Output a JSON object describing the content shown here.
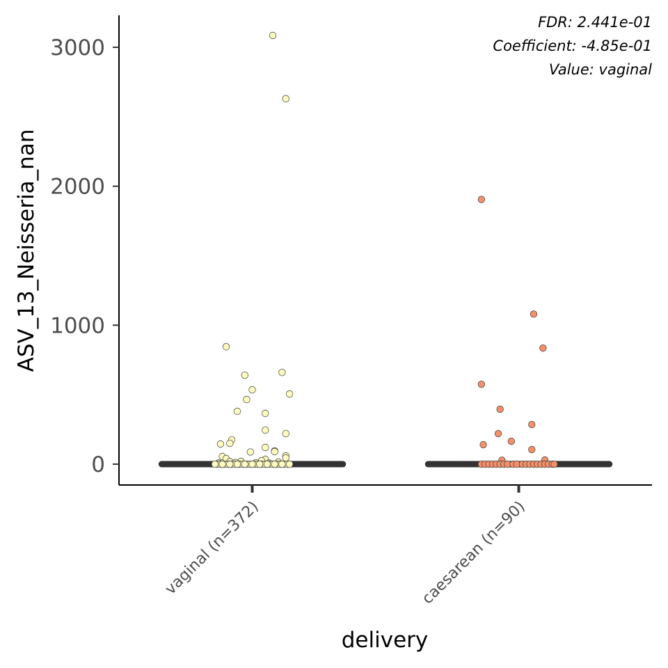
{
  "chart_data": {
    "type": "scatter",
    "subtype": "jitter-strip-with-median",
    "xlabel": "delivery",
    "ylabel": "ASV_13_Neisseria_nan",
    "ylim": [
      -150,
      3230
    ],
    "yticks": [
      0,
      1000,
      2000,
      3000
    ],
    "grid": false,
    "legend": "none",
    "annotations": [
      "FDR: 2.441e-01",
      "Coefficient: -4.85e-01",
      "Value: vaginal"
    ],
    "categories": [
      "vaginal (n=372)",
      "caesarean (n=90)"
    ],
    "colors": {
      "vaginal": "#fdfbc0",
      "caesarean": "#f4906a",
      "median_line": "#333333",
      "point_stroke": "#3a3a3a",
      "axis": "#000000"
    },
    "medians": [
      0,
      0
    ],
    "series": [
      {
        "category": "vaginal (n=372)",
        "points": [
          {
            "dx": 0.11,
            "y": 3085
          },
          {
            "dx": 0.18,
            "y": 2630
          },
          {
            "dx": -0.14,
            "y": 845
          },
          {
            "dx": 0.16,
            "y": 660
          },
          {
            "dx": -0.04,
            "y": 640
          },
          {
            "dx": 0.0,
            "y": 535
          },
          {
            "dx": 0.2,
            "y": 505
          },
          {
            "dx": -0.03,
            "y": 465
          },
          {
            "dx": -0.08,
            "y": 380
          },
          {
            "dx": 0.07,
            "y": 365
          },
          {
            "dx": 0.07,
            "y": 245
          },
          {
            "dx": 0.18,
            "y": 220
          },
          {
            "dx": -0.11,
            "y": 175
          },
          {
            "dx": -0.12,
            "y": 150
          },
          {
            "dx": -0.17,
            "y": 145
          },
          {
            "dx": 0.07,
            "y": 120
          },
          {
            "dx": 0.12,
            "y": 95
          },
          {
            "dx": 0.12,
            "y": 90
          },
          {
            "dx": -0.01,
            "y": 88
          },
          {
            "dx": 0.18,
            "y": 60
          },
          {
            "dx": -0.16,
            "y": 55
          },
          {
            "dx": -0.14,
            "y": 40
          },
          {
            "dx": 0.18,
            "y": 45
          },
          {
            "dx": 0.07,
            "y": 35
          },
          {
            "dx": 0.05,
            "y": 25
          },
          {
            "dx": -0.06,
            "y": 20
          },
          {
            "dx": -0.12,
            "y": 18
          },
          {
            "dx": 0.14,
            "y": 15
          },
          {
            "dx": -0.09,
            "y": 12
          },
          {
            "dx": 0.02,
            "y": 10
          },
          {
            "dx": -0.18,
            "y": 8
          },
          {
            "dx": 0.09,
            "y": 8
          },
          {
            "dx": -0.19,
            "y": 0
          },
          {
            "dx": -0.17,
            "y": 0
          },
          {
            "dx": -0.15,
            "y": 0
          },
          {
            "dx": -0.13,
            "y": 0
          },
          {
            "dx": -0.11,
            "y": 0
          },
          {
            "dx": -0.09,
            "y": 0
          },
          {
            "dx": -0.07,
            "y": 0
          },
          {
            "dx": -0.05,
            "y": 0
          },
          {
            "dx": -0.03,
            "y": 0
          },
          {
            "dx": -0.01,
            "y": 0
          },
          {
            "dx": 0.01,
            "y": 0
          },
          {
            "dx": 0.03,
            "y": 0
          },
          {
            "dx": 0.05,
            "y": 0
          },
          {
            "dx": 0.07,
            "y": 0
          },
          {
            "dx": 0.09,
            "y": 0
          },
          {
            "dx": 0.11,
            "y": 0
          },
          {
            "dx": 0.13,
            "y": 0
          },
          {
            "dx": 0.15,
            "y": 0
          },
          {
            "dx": 0.17,
            "y": 0
          },
          {
            "dx": 0.19,
            "y": 0
          },
          {
            "dx": -0.2,
            "y": 0
          },
          {
            "dx": -0.16,
            "y": 0
          },
          {
            "dx": -0.12,
            "y": 0
          },
          {
            "dx": -0.08,
            "y": 0
          },
          {
            "dx": -0.04,
            "y": 0
          },
          {
            "dx": 0.0,
            "y": 0
          },
          {
            "dx": 0.04,
            "y": 0
          },
          {
            "dx": 0.08,
            "y": 0
          },
          {
            "dx": 0.12,
            "y": 0
          },
          {
            "dx": 0.16,
            "y": 0
          },
          {
            "dx": 0.2,
            "y": 0
          }
        ]
      },
      {
        "category": "caesarean (n=90)",
        "points": [
          {
            "dx": -0.2,
            "y": 1905
          },
          {
            "dx": 0.08,
            "y": 1080
          },
          {
            "dx": 0.13,
            "y": 835
          },
          {
            "dx": -0.2,
            "y": 575
          },
          {
            "dx": -0.1,
            "y": 395
          },
          {
            "dx": 0.07,
            "y": 285
          },
          {
            "dx": -0.11,
            "y": 220
          },
          {
            "dx": -0.04,
            "y": 165
          },
          {
            "dx": -0.19,
            "y": 140
          },
          {
            "dx": 0.07,
            "y": 105
          },
          {
            "dx": 0.14,
            "y": 30
          },
          {
            "dx": -0.09,
            "y": 28
          },
          {
            "dx": -0.2,
            "y": 0
          },
          {
            "dx": -0.18,
            "y": 0
          },
          {
            "dx": -0.16,
            "y": 0
          },
          {
            "dx": -0.14,
            "y": 0
          },
          {
            "dx": -0.12,
            "y": 0
          },
          {
            "dx": -0.1,
            "y": 0
          },
          {
            "dx": -0.08,
            "y": 0
          },
          {
            "dx": -0.06,
            "y": 0
          },
          {
            "dx": -0.03,
            "y": 0
          },
          {
            "dx": -0.01,
            "y": 0
          },
          {
            "dx": 0.02,
            "y": 0
          },
          {
            "dx": 0.04,
            "y": 0
          },
          {
            "dx": 0.06,
            "y": 0
          },
          {
            "dx": 0.08,
            "y": 0
          },
          {
            "dx": 0.1,
            "y": 0
          },
          {
            "dx": 0.12,
            "y": 0
          },
          {
            "dx": 0.14,
            "y": 0
          },
          {
            "dx": 0.16,
            "y": 0
          },
          {
            "dx": 0.18,
            "y": 0
          },
          {
            "dx": 0.19,
            "y": 0
          }
        ]
      }
    ]
  }
}
